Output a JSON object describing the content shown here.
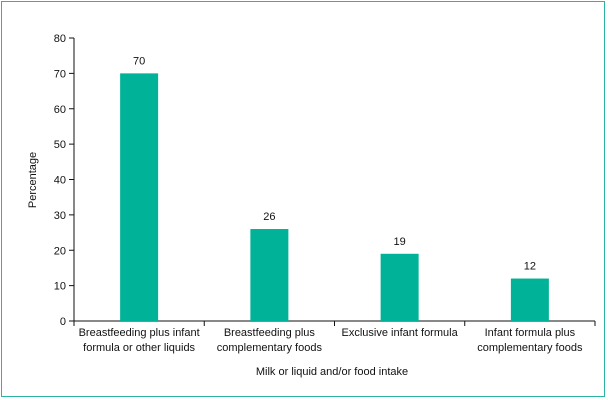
{
  "chart_data": {
    "type": "bar",
    "categories": [
      [
        "Breastfeeding plus infant",
        "formula or other liquids"
      ],
      [
        "Breastfeeding plus",
        "complementary foods"
      ],
      [
        "Exclusive infant formula"
      ],
      [
        "Infant formula plus",
        "complementary foods"
      ]
    ],
    "values": [
      70,
      26,
      19,
      12
    ],
    "data_labels": [
      "70",
      "26",
      "19",
      "12"
    ],
    "xlabel": "Milk or liquid and/or food intake",
    "ylabel": "Percentage",
    "ylim": [
      0,
      80
    ],
    "yticks": [
      0,
      10,
      20,
      30,
      40,
      50,
      60,
      70,
      80
    ],
    "grid": false,
    "bar_color": "#00b398",
    "border_color": "#2bb5a1"
  }
}
